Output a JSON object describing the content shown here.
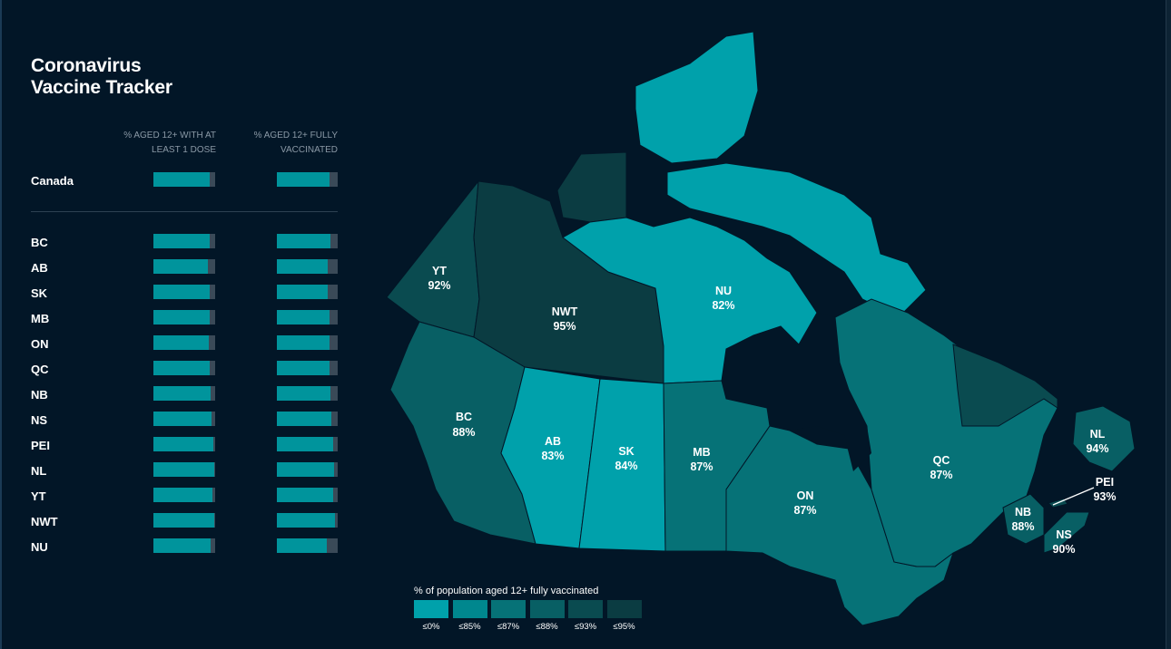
{
  "title_line1": "Coronavirus",
  "title_line2": "Vaccine Tracker",
  "columns": {
    "one_dose": "% AGED 12+ WITH AT LEAST 1 DOSE",
    "fully": "% AGED 12+ FULLY VACCINATED"
  },
  "canada": {
    "name": "Canada",
    "one_dose": "91%",
    "fully": "87%",
    "one_dose_value": 91,
    "fully_value": 87
  },
  "provinces": [
    {
      "name": "BC",
      "one_dose": "91%",
      "fully": "88%",
      "one_dose_value": 91,
      "fully_value": 88
    },
    {
      "name": "AB",
      "one_dose": "88%",
      "fully": "83%",
      "one_dose_value": 88,
      "fully_value": 83
    },
    {
      "name": "SK",
      "one_dose": "91%",
      "fully": "84%",
      "one_dose_value": 91,
      "fully_value": 84
    },
    {
      "name": "MB",
      "one_dose": "91%",
      "fully": "87%",
      "one_dose_value": 91,
      "fully_value": 87
    },
    {
      "name": "ON",
      "one_dose": "90%",
      "fully": "87%",
      "one_dose_value": 90,
      "fully_value": 87
    },
    {
      "name": "QC",
      "one_dose": "91%",
      "fully": "87%",
      "one_dose_value": 91,
      "fully_value": 87
    },
    {
      "name": "NB",
      "one_dose": "93%",
      "fully": "88%",
      "one_dose_value": 93,
      "fully_value": 88
    },
    {
      "name": "NS",
      "one_dose": "94%",
      "fully": "90%",
      "one_dose_value": 94,
      "fully_value": 90
    },
    {
      "name": "PEI",
      "one_dose": "97%",
      "fully": "93%",
      "one_dose_value": 97,
      "fully_value": 93
    },
    {
      "name": "NL",
      "one_dose": "98%",
      "fully": "94%",
      "one_dose_value": 98,
      "fully_value": 94
    },
    {
      "name": "YT",
      "one_dose": "95%",
      "fully": "92%",
      "one_dose_value": 95,
      "fully_value": 92
    },
    {
      "name": "NWT",
      "one_dose": "99%",
      "fully": "95%",
      "one_dose_value": 99,
      "fully_value": 95
    },
    {
      "name": "NU",
      "one_dose": "92%",
      "fully": "82%",
      "one_dose_value": 92,
      "fully_value": 82
    }
  ],
  "map_labels": {
    "YT": {
      "name": "YT",
      "value": "92%"
    },
    "NWT": {
      "name": "NWT",
      "value": "95%"
    },
    "NU": {
      "name": "NU",
      "value": "82%"
    },
    "BC": {
      "name": "BC",
      "value": "88%"
    },
    "AB": {
      "name": "AB",
      "value": "83%"
    },
    "SK": {
      "name": "SK",
      "value": "84%"
    },
    "MB": {
      "name": "MB",
      "value": "87%"
    },
    "ON": {
      "name": "ON",
      "value": "87%"
    },
    "QC": {
      "name": "QC",
      "value": "87%"
    },
    "NL": {
      "name": "NL",
      "value": "94%"
    },
    "PEI": {
      "name": "PEI",
      "value": "93%"
    },
    "NB": {
      "name": "NB",
      "value": "88%"
    },
    "NS": {
      "name": "NS",
      "value": "90%"
    }
  },
  "legend": {
    "title": "% of population aged 12+ fully vaccinated",
    "items": [
      {
        "label": "≤0%",
        "color": "#00a1ab"
      },
      {
        "label": "≤85%",
        "color": "#00878e"
      },
      {
        "label": "≤87%",
        "color": "#067277"
      },
      {
        "label": "≤88%",
        "color": "#085f64"
      },
      {
        "label": "≤93%",
        "color": "#0a4b50"
      },
      {
        "label": "≤95%",
        "color": "#0b3c42"
      }
    ]
  },
  "colors": {
    "background": "#021627",
    "bar_fill": "#00949c",
    "bar_track": "#3a4a58"
  }
}
